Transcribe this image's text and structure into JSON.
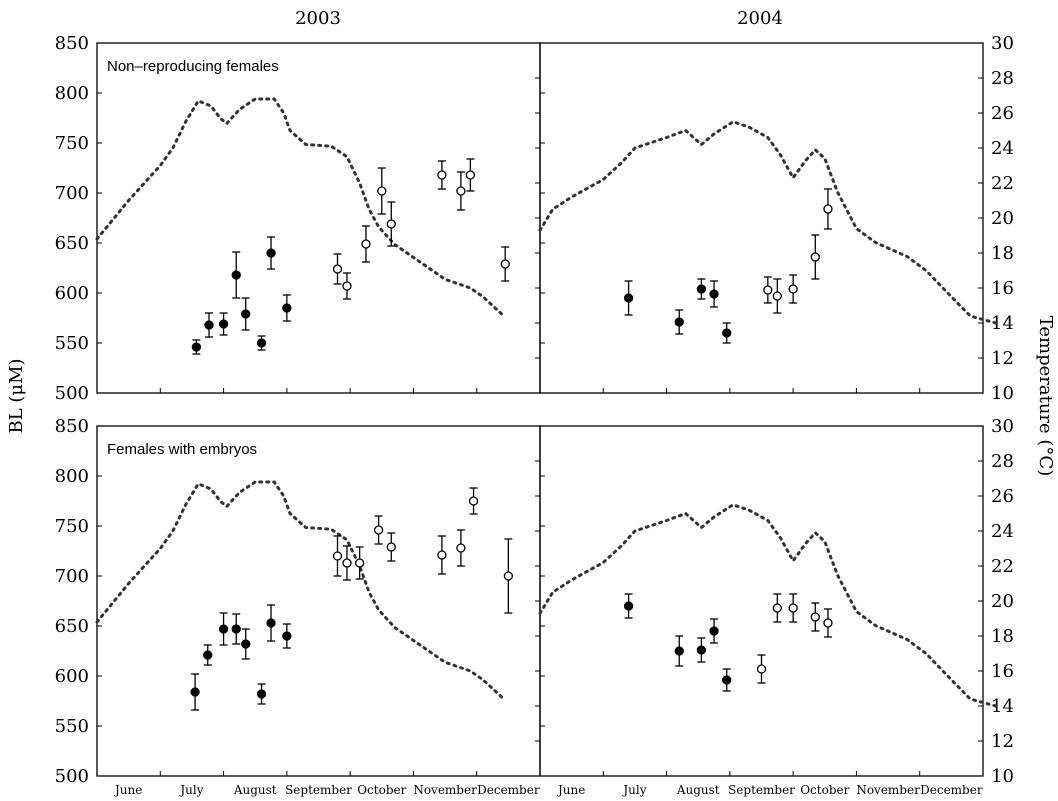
{
  "figure": {
    "col_titles": [
      "2003",
      "2004"
    ],
    "ylabel_left": "BL (μM)",
    "ylabel_right": "Temperature (°C)",
    "left_ticks": [
      "500",
      "550",
      "600",
      "650",
      "700",
      "750",
      "800",
      "850"
    ],
    "right_ticks": [
      "10",
      "12",
      "14",
      "16",
      "18",
      "20",
      "22",
      "24",
      "26",
      "28",
      "30"
    ],
    "row_labels": [
      "Non–reproducing females",
      "Females with embryos"
    ],
    "months": [
      "June",
      "July",
      "August",
      "September",
      "October",
      "November",
      "December"
    ]
  },
  "chart_data": [
    {
      "type": "scatter",
      "panel": "2003 / Non–reproducing females",
      "ylim": [
        500,
        850
      ],
      "y2lim": [
        10,
        30
      ],
      "ylabel": "BL (μM)",
      "y2label": "Temperature (°C)",
      "series": [
        {
          "marker": "filled",
          "points": [
            {
              "x": 1.57,
              "y": 546,
              "err": 7
            },
            {
              "x": 1.77,
              "y": 568,
              "err": 12
            },
            {
              "x": 2.0,
              "y": 569,
              "err": 11
            },
            {
              "x": 2.2,
              "y": 618,
              "err": 23
            },
            {
              "x": 2.35,
              "y": 579,
              "err": 16
            },
            {
              "x": 2.6,
              "y": 550,
              "err": 7
            },
            {
              "x": 2.75,
              "y": 640,
              "err": 16
            },
            {
              "x": 3.0,
              "y": 585,
              "err": 13
            }
          ]
        },
        {
          "marker": "open",
          "points": [
            {
              "x": 3.8,
              "y": 624,
              "err": 15
            },
            {
              "x": 3.95,
              "y": 607,
              "err": 13
            },
            {
              "x": 4.25,
              "y": 649,
              "err": 18
            },
            {
              "x": 4.5,
              "y": 702,
              "err": 23
            },
            {
              "x": 4.65,
              "y": 669,
              "err": 22
            },
            {
              "x": 5.45,
              "y": 718,
              "err": 14
            },
            {
              "x": 5.75,
              "y": 702,
              "err": 19
            },
            {
              "x": 5.9,
              "y": 718,
              "err": 16
            },
            {
              "x": 6.45,
              "y": 629,
              "err": 17
            }
          ]
        }
      ],
      "temperature": [
        [
          0,
          18.8
        ],
        [
          0.5,
          21
        ],
        [
          1,
          23
        ],
        [
          1.2,
          24
        ],
        [
          1.4,
          25.5
        ],
        [
          1.6,
          26.7
        ],
        [
          1.8,
          26.4
        ],
        [
          1.95,
          25.7
        ],
        [
          2.05,
          25.4
        ],
        [
          2.25,
          26.2
        ],
        [
          2.5,
          26.8
        ],
        [
          2.8,
          26.8
        ],
        [
          2.95,
          26
        ],
        [
          3.05,
          25
        ],
        [
          3.3,
          24.2
        ],
        [
          3.7,
          24.1
        ],
        [
          3.95,
          23.5
        ],
        [
          4.15,
          22
        ],
        [
          4.3,
          20.5
        ],
        [
          4.45,
          19.5
        ],
        [
          4.7,
          18.5
        ],
        [
          5.1,
          17.5
        ],
        [
          5.5,
          16.5
        ],
        [
          5.9,
          16.0
        ],
        [
          6.1,
          15.5
        ],
        [
          6.4,
          14.5
        ]
      ]
    },
    {
      "type": "scatter",
      "panel": "2004 / Non–reproducing females",
      "ylim": [
        500,
        850
      ],
      "y2lim": [
        10,
        30
      ],
      "series": [
        {
          "marker": "filled",
          "points": [
            {
              "x": 1.4,
              "y": 595,
              "err": 17
            },
            {
              "x": 2.2,
              "y": 571,
              "err": 12
            },
            {
              "x": 2.55,
              "y": 604,
              "err": 10
            },
            {
              "x": 2.75,
              "y": 599,
              "err": 13
            },
            {
              "x": 2.95,
              "y": 560,
              "err": 10
            }
          ]
        },
        {
          "marker": "open",
          "points": [
            {
              "x": 3.6,
              "y": 603,
              "err": 13
            },
            {
              "x": 3.75,
              "y": 597,
              "err": 17
            },
            {
              "x": 4.0,
              "y": 604,
              "err": 14
            },
            {
              "x": 4.35,
              "y": 636,
              "err": 22
            },
            {
              "x": 4.55,
              "y": 684,
              "err": 20
            }
          ]
        }
      ],
      "temperature": [
        [
          0,
          19.3
        ],
        [
          0.2,
          20.5
        ],
        [
          0.5,
          21.2
        ],
        [
          1,
          22.2
        ],
        [
          1.3,
          23.2
        ],
        [
          1.5,
          24
        ],
        [
          2.0,
          24.6
        ],
        [
          2.3,
          25
        ],
        [
          2.55,
          24.2
        ],
        [
          2.75,
          24.8
        ],
        [
          3.05,
          25.5
        ],
        [
          3.3,
          25.2
        ],
        [
          3.6,
          24.6
        ],
        [
          3.8,
          23.6
        ],
        [
          4.0,
          22.3
        ],
        [
          4.2,
          23.3
        ],
        [
          4.35,
          23.9
        ],
        [
          4.5,
          23.4
        ],
        [
          4.7,
          21.5
        ],
        [
          5.0,
          19.4
        ],
        [
          5.3,
          18.6
        ],
        [
          5.8,
          17.8
        ],
        [
          6.1,
          17.0
        ],
        [
          6.5,
          15.5
        ],
        [
          6.8,
          14.4
        ],
        [
          7.2,
          14.0
        ]
      ]
    },
    {
      "type": "scatter",
      "panel": "2003 / Females with embryos",
      "ylim": [
        500,
        850
      ],
      "y2lim": [
        10,
        30
      ],
      "series": [
        {
          "marker": "filled",
          "points": [
            {
              "x": 1.55,
              "y": 584,
              "err": 18
            },
            {
              "x": 1.75,
              "y": 621,
              "err": 10
            },
            {
              "x": 2.0,
              "y": 647,
              "err": 16
            },
            {
              "x": 2.2,
              "y": 647,
              "err": 15
            },
            {
              "x": 2.35,
              "y": 632,
              "err": 15
            },
            {
              "x": 2.6,
              "y": 582,
              "err": 10
            },
            {
              "x": 2.75,
              "y": 653,
              "err": 18
            },
            {
              "x": 3.0,
              "y": 640,
              "err": 12
            }
          ]
        },
        {
          "marker": "open",
          "points": [
            {
              "x": 3.8,
              "y": 720,
              "err": 20
            },
            {
              "x": 3.95,
              "y": 713,
              "err": 17
            },
            {
              "x": 4.15,
              "y": 713,
              "err": 16
            },
            {
              "x": 4.45,
              "y": 746,
              "err": 14
            },
            {
              "x": 4.65,
              "y": 729,
              "err": 14
            },
            {
              "x": 5.45,
              "y": 721,
              "err": 19
            },
            {
              "x": 5.75,
              "y": 728,
              "err": 18
            },
            {
              "x": 5.95,
              "y": 775,
              "err": 13
            },
            {
              "x": 6.5,
              "y": 700,
              "err": 37
            }
          ]
        }
      ],
      "temperature": [
        [
          0,
          18.8
        ],
        [
          0.5,
          21
        ],
        [
          1,
          23
        ],
        [
          1.2,
          24
        ],
        [
          1.4,
          25.5
        ],
        [
          1.6,
          26.7
        ],
        [
          1.8,
          26.4
        ],
        [
          1.95,
          25.7
        ],
        [
          2.05,
          25.4
        ],
        [
          2.25,
          26.2
        ],
        [
          2.5,
          26.8
        ],
        [
          2.8,
          26.8
        ],
        [
          2.95,
          26
        ],
        [
          3.05,
          25
        ],
        [
          3.3,
          24.2
        ],
        [
          3.7,
          24.1
        ],
        [
          3.95,
          23.5
        ],
        [
          4.15,
          22
        ],
        [
          4.3,
          20.5
        ],
        [
          4.45,
          19.5
        ],
        [
          4.7,
          18.5
        ],
        [
          5.1,
          17.5
        ],
        [
          5.5,
          16.5
        ],
        [
          5.9,
          16.0
        ],
        [
          6.1,
          15.5
        ],
        [
          6.4,
          14.5
        ]
      ]
    },
    {
      "type": "scatter",
      "panel": "2004 / Females with embryos",
      "ylim": [
        500,
        850
      ],
      "y2lim": [
        10,
        30
      ],
      "series": [
        {
          "marker": "filled",
          "points": [
            {
              "x": 1.4,
              "y": 670,
              "err": 12
            },
            {
              "x": 2.2,
              "y": 625,
              "err": 15
            },
            {
              "x": 2.55,
              "y": 626,
              "err": 12
            },
            {
              "x": 2.75,
              "y": 645,
              "err": 12
            },
            {
              "x": 2.95,
              "y": 596,
              "err": 11
            }
          ]
        },
        {
          "marker": "open",
          "points": [
            {
              "x": 3.5,
              "y": 607,
              "err": 14
            },
            {
              "x": 3.75,
              "y": 668,
              "err": 14
            },
            {
              "x": 4.0,
              "y": 668,
              "err": 14
            },
            {
              "x": 4.35,
              "y": 659,
              "err": 14
            },
            {
              "x": 4.55,
              "y": 653,
              "err": 14
            }
          ]
        }
      ],
      "temperature": [
        [
          0,
          19.3
        ],
        [
          0.2,
          20.5
        ],
        [
          0.5,
          21.2
        ],
        [
          1,
          22.2
        ],
        [
          1.3,
          23.2
        ],
        [
          1.5,
          24
        ],
        [
          2.0,
          24.6
        ],
        [
          2.3,
          25
        ],
        [
          2.55,
          24.2
        ],
        [
          2.75,
          24.8
        ],
        [
          3.05,
          25.5
        ],
        [
          3.3,
          25.2
        ],
        [
          3.6,
          24.6
        ],
        [
          3.8,
          23.6
        ],
        [
          4.0,
          22.3
        ],
        [
          4.2,
          23.3
        ],
        [
          4.35,
          23.9
        ],
        [
          4.5,
          23.4
        ],
        [
          4.7,
          21.5
        ],
        [
          5.0,
          19.4
        ],
        [
          5.3,
          18.6
        ],
        [
          5.8,
          17.8
        ],
        [
          6.1,
          17.0
        ],
        [
          6.5,
          15.5
        ],
        [
          6.8,
          14.4
        ],
        [
          7.2,
          14.0
        ]
      ]
    }
  ]
}
